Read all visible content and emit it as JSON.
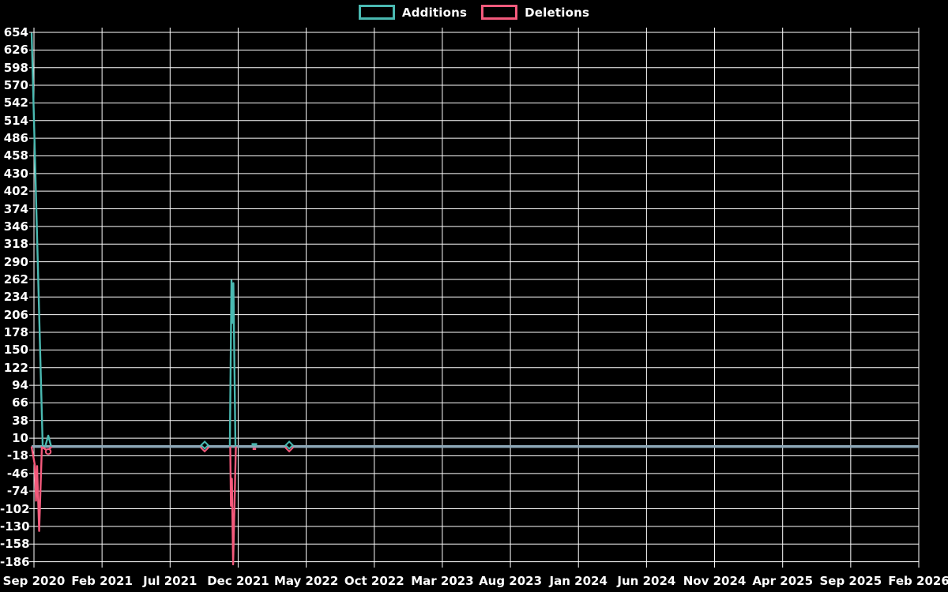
{
  "legend": {
    "items": [
      {
        "label": "Additions",
        "color_key": "additions"
      },
      {
        "label": "Deletions",
        "color_key": "deletions"
      }
    ],
    "position": "top-center"
  },
  "colors": {
    "background": "#000000",
    "grid": "#ffffff",
    "text": "#ffffff",
    "additions": "#4ab9b1",
    "deletions": "#f45a7c",
    "baseline_blend": "#8ca7b7"
  },
  "chart_data": {
    "type": "line",
    "title": "",
    "xlabel": "",
    "ylabel": "",
    "legend_position": "top",
    "grid": true,
    "ylim": [
      -186,
      654
    ],
    "y_tick_step": 28,
    "y_tick_labels": [
      654,
      626,
      598,
      570,
      542,
      514,
      486,
      458,
      430,
      402,
      374,
      346,
      318,
      290,
      262,
      234,
      206,
      178,
      150,
      122,
      94,
      66,
      38,
      10,
      -18,
      -46,
      -74,
      -102,
      -130,
      -158,
      -186
    ],
    "x_tick_labels": [
      "Sep 2020",
      "Feb 2021",
      "Jul 2021",
      "Dec 2021",
      "May 2022",
      "Oct 2022",
      "Mar 2023",
      "Aug 2023",
      "Jan 2024",
      "Jun 2024",
      "Nov 2024",
      "Apr 2025",
      "Sep 2025",
      "Feb 2026"
    ],
    "x_tick_month_offsets": [
      0,
      5,
      10,
      15,
      20,
      25,
      30,
      35,
      40,
      45,
      50,
      55,
      60,
      65
    ],
    "x_axis_unit": "months_after_Sep_2020",
    "x_range_months": [
      -0.2,
      65
    ],
    "series": [
      {
        "name": "Additions",
        "color_key": "additions",
        "points": [
          {
            "m": -0.17,
            "v": 654
          },
          {
            "m": 0.64,
            "v": 0
          },
          {
            "m": 0.84,
            "v": 0
          },
          {
            "m": 1.05,
            "v": 16
          },
          {
            "m": 1.25,
            "v": 0
          },
          {
            "m": 12.54,
            "v": 0,
            "marker": "diamond"
          },
          {
            "m": 14.39,
            "v": 0
          },
          {
            "m": 14.51,
            "v": 262
          },
          {
            "m": 14.58,
            "v": 195
          },
          {
            "m": 14.65,
            "v": 258
          },
          {
            "m": 14.8,
            "v": 0
          },
          {
            "m": 16.19,
            "v": 0,
            "marker": "dash"
          },
          {
            "m": 18.75,
            "v": 0,
            "marker": "diamond"
          },
          {
            "m": 65,
            "v": 0
          }
        ]
      },
      {
        "name": "Deletions",
        "color_key": "deletions",
        "points": [
          {
            "m": -0.17,
            "v": 0
          },
          {
            "m": 0.06,
            "v": -28
          },
          {
            "m": 0.15,
            "v": -85
          },
          {
            "m": 0.23,
            "v": -30
          },
          {
            "m": 0.38,
            "v": -133
          },
          {
            "m": 0.58,
            "v": 0
          },
          {
            "m": 1.05,
            "v": -6,
            "marker": "circle"
          },
          {
            "m": 1.25,
            "v": 0
          },
          {
            "m": 12.54,
            "v": 0,
            "marker": "diamond"
          },
          {
            "m": 14.42,
            "v": 0
          },
          {
            "m": 14.47,
            "v": -93
          },
          {
            "m": 14.54,
            "v": -50
          },
          {
            "m": 14.63,
            "v": -186
          },
          {
            "m": 14.83,
            "v": 0
          },
          {
            "m": 16.19,
            "v": 0,
            "marker": "dash"
          },
          {
            "m": 18.75,
            "v": 0,
            "marker": "diamond"
          },
          {
            "m": 65,
            "v": 0
          }
        ]
      }
    ]
  }
}
